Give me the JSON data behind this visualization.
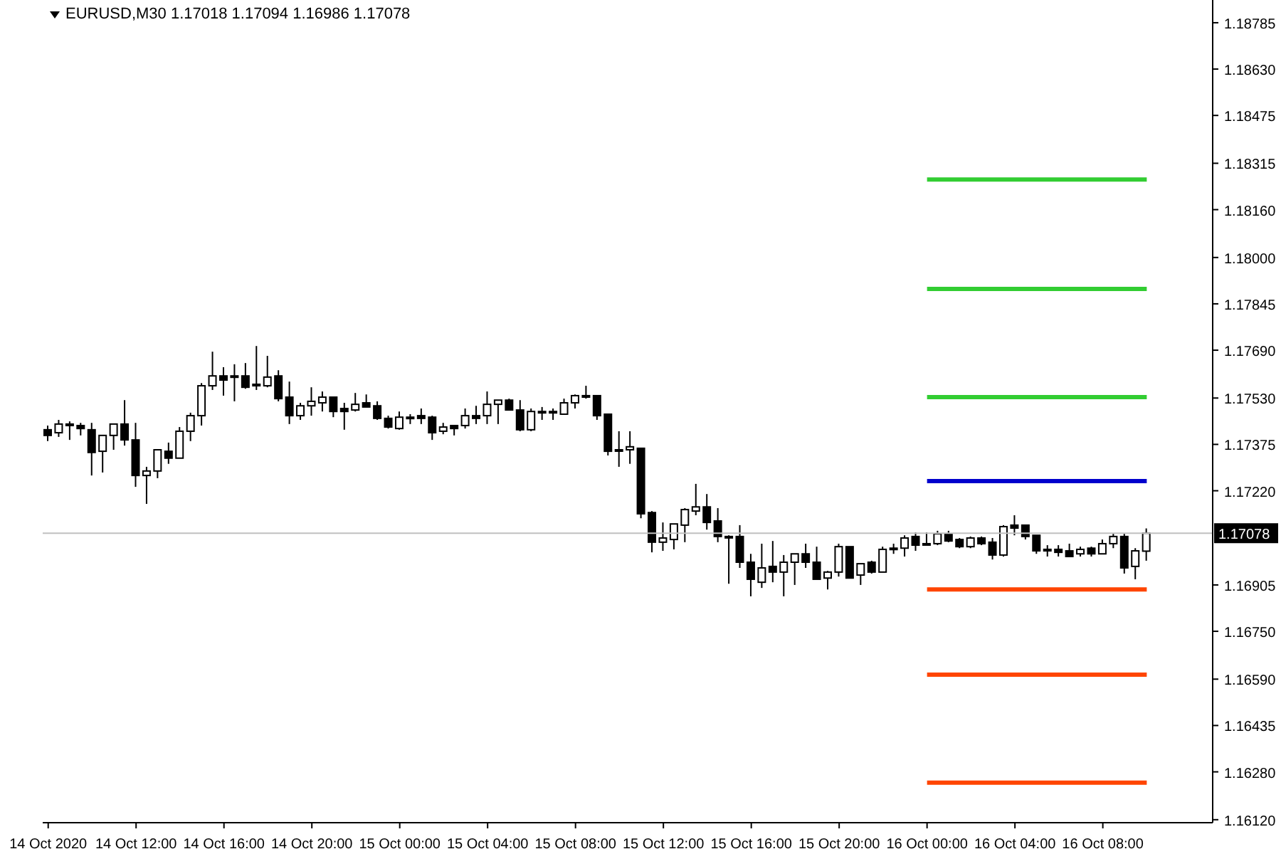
{
  "chart_data": {
    "type": "candlestick",
    "title": "EURUSD,M30 1.17018 1.17094 1.16986 1.17078",
    "x": [
      "2020-10-14T08:00",
      "2020-10-14T08:30",
      "2020-10-14T09:00",
      "2020-10-14T09:30",
      "2020-10-14T10:00",
      "2020-10-14T10:30",
      "2020-10-14T11:00",
      "2020-10-14T11:30",
      "2020-10-14T12:00",
      "2020-10-14T12:30",
      "2020-10-14T13:00",
      "2020-10-14T13:30",
      "2020-10-14T14:00",
      "2020-10-14T14:30",
      "2020-10-14T15:00",
      "2020-10-14T15:30",
      "2020-10-14T16:00",
      "2020-10-14T16:30",
      "2020-10-14T17:00",
      "2020-10-14T17:30",
      "2020-10-14T18:00",
      "2020-10-14T18:30",
      "2020-10-14T19:00",
      "2020-10-14T19:30",
      "2020-10-14T20:00",
      "2020-10-14T20:30",
      "2020-10-14T21:00",
      "2020-10-14T21:30",
      "2020-10-14T22:00",
      "2020-10-14T22:30",
      "2020-10-14T23:00",
      "2020-10-14T23:30",
      "2020-10-15T00:00",
      "2020-10-15T00:30",
      "2020-10-15T01:00",
      "2020-10-15T01:30",
      "2020-10-15T02:00",
      "2020-10-15T02:30",
      "2020-10-15T03:00",
      "2020-10-15T03:30",
      "2020-10-15T04:00",
      "2020-10-15T04:30",
      "2020-10-15T05:00",
      "2020-10-15T05:30",
      "2020-10-15T06:00",
      "2020-10-15T06:30",
      "2020-10-15T07:00",
      "2020-10-15T07:30",
      "2020-10-15T08:00",
      "2020-10-15T08:30",
      "2020-10-15T09:00",
      "2020-10-15T09:30",
      "2020-10-15T10:00",
      "2020-10-15T10:30",
      "2020-10-15T11:00",
      "2020-10-15T11:30",
      "2020-10-15T12:00",
      "2020-10-15T12:30",
      "2020-10-15T13:00",
      "2020-10-15T13:30",
      "2020-10-15T14:00",
      "2020-10-15T14:30",
      "2020-10-15T15:00",
      "2020-10-15T15:30",
      "2020-10-15T16:00",
      "2020-10-15T16:30",
      "2020-10-15T17:00",
      "2020-10-15T17:30",
      "2020-10-15T18:00",
      "2020-10-15T18:30",
      "2020-10-15T19:00",
      "2020-10-15T19:30",
      "2020-10-15T20:00",
      "2020-10-15T20:30",
      "2020-10-15T21:00",
      "2020-10-15T21:30",
      "2020-10-15T22:00",
      "2020-10-15T22:30",
      "2020-10-15T23:00",
      "2020-10-15T23:30",
      "2020-10-16T00:00",
      "2020-10-16T00:30",
      "2020-10-16T01:00",
      "2020-10-16T01:30",
      "2020-10-16T02:00",
      "2020-10-16T02:30",
      "2020-10-16T03:00",
      "2020-10-16T03:30",
      "2020-10-16T04:00",
      "2020-10-16T04:30",
      "2020-10-16T05:00",
      "2020-10-16T05:30",
      "2020-10-16T06:00",
      "2020-10-16T06:30",
      "2020-10-16T07:00",
      "2020-10-16T07:30",
      "2020-10-16T08:00",
      "2020-10-16T08:30",
      "2020-10-16T09:00",
      "2020-10-16T09:30",
      "2020-10-16T10:00"
    ],
    "ohlc": [
      [
        1.17424,
        1.17438,
        1.17386,
        1.17405
      ],
      [
        1.17414,
        1.17457,
        1.174,
        1.17443
      ],
      [
        1.17443,
        1.17452,
        1.1739,
        1.17438
      ],
      [
        1.17438,
        1.17447,
        1.17405,
        1.17428
      ],
      [
        1.17424,
        1.17447,
        1.17271,
        1.17348
      ],
      [
        1.17352,
        1.17405,
        1.17281,
        1.17405
      ],
      [
        1.17405,
        1.17443,
        1.17357,
        1.17443
      ],
      [
        1.17443,
        1.17523,
        1.17371,
        1.1739
      ],
      [
        1.1739,
        1.17447,
        1.17233,
        1.17271
      ],
      [
        1.17271,
        1.173,
        1.17176,
        1.17286
      ],
      [
        1.17286,
        1.17357,
        1.17262,
        1.17357
      ],
      [
        1.17352,
        1.17381,
        1.1731,
        1.17329
      ],
      [
        1.17329,
        1.17433,
        1.17329,
        1.17419
      ],
      [
        1.17419,
        1.17481,
        1.17386,
        1.17471
      ],
      [
        1.17471,
        1.1758,
        1.17438,
        1.17571
      ],
      [
        1.17571,
        1.17685,
        1.17557,
        1.17604
      ],
      [
        1.17604,
        1.17633,
        1.17538,
        1.1759
      ],
      [
        1.17604,
        1.17643,
        1.17519,
        1.176
      ],
      [
        1.17604,
        1.17647,
        1.17561,
        1.17566
      ],
      [
        1.17576,
        1.17704,
        1.17557,
        1.17571
      ],
      [
        1.17571,
        1.17671,
        1.17566,
        1.176
      ],
      [
        1.17604,
        1.17623,
        1.17519,
        1.17528
      ],
      [
        1.17533,
        1.17585,
        1.17443,
        1.17471
      ],
      [
        1.17471,
        1.17514,
        1.17457,
        1.17504
      ],
      [
        1.17504,
        1.17566,
        1.17471,
        1.17519
      ],
      [
        1.17514,
        1.17552,
        1.17485,
        1.17533
      ],
      [
        1.17533,
        1.17533,
        1.17466,
        1.17485
      ],
      [
        1.17495,
        1.17514,
        1.17424,
        1.17485
      ],
      [
        1.1749,
        1.17547,
        1.17485,
        1.17509
      ],
      [
        1.17514,
        1.17542,
        1.175,
        1.175
      ],
      [
        1.17504,
        1.17519,
        1.17457,
        1.17462
      ],
      [
        1.17462,
        1.17471,
        1.17428,
        1.17433
      ],
      [
        1.17428,
        1.17485,
        1.17424,
        1.17466
      ],
      [
        1.17466,
        1.17476,
        1.17443,
        1.17462
      ],
      [
        1.17471,
        1.17495,
        1.17443,
        1.17462
      ],
      [
        1.17466,
        1.17471,
        1.1739,
        1.17414
      ],
      [
        1.17419,
        1.17447,
        1.17409,
        1.17433
      ],
      [
        1.17438,
        1.17438,
        1.17405,
        1.17428
      ],
      [
        1.17438,
        1.17495,
        1.17428,
        1.17471
      ],
      [
        1.17471,
        1.17504,
        1.17443,
        1.17462
      ],
      [
        1.17471,
        1.17552,
        1.17443,
        1.17509
      ],
      [
        1.17509,
        1.17523,
        1.17443,
        1.17523
      ],
      [
        1.17523,
        1.17528,
        1.1749,
        1.1749
      ],
      [
        1.1749,
        1.17523,
        1.17419,
        1.17424
      ],
      [
        1.17424,
        1.17495,
        1.17419,
        1.17485
      ],
      [
        1.17485,
        1.175,
        1.17457,
        1.17485
      ],
      [
        1.17485,
        1.17495,
        1.17457,
        1.17481
      ],
      [
        1.17476,
        1.17528,
        1.17476,
        1.17514
      ],
      [
        1.17514,
        1.17542,
        1.17495,
        1.17538
      ],
      [
        1.17538,
        1.17571,
        1.17528,
        1.17533
      ],
      [
        1.17538,
        1.17538,
        1.17457,
        1.17471
      ],
      [
        1.17476,
        1.17476,
        1.17338,
        1.17352
      ],
      [
        1.17357,
        1.17419,
        1.173,
        1.17357
      ],
      [
        1.17357,
        1.17419,
        1.1731,
        1.17367
      ],
      [
        1.17362,
        1.17362,
        1.17128,
        1.17143
      ],
      [
        1.17147,
        1.17152,
        1.17014,
        1.17048
      ],
      [
        1.17048,
        1.17114,
        1.17019,
        1.17062
      ],
      [
        1.17057,
        1.17109,
        1.17024,
        1.17109
      ],
      [
        1.17105,
        1.17162,
        1.17048,
        1.17157
      ],
      [
        1.17152,
        1.17243,
        1.17138,
        1.17166
      ],
      [
        1.17166,
        1.17209,
        1.1709,
        1.17114
      ],
      [
        1.17119,
        1.17162,
        1.17048,
        1.17067
      ],
      [
        1.17067,
        1.17071,
        1.16909,
        1.17067
      ],
      [
        1.17067,
        1.17105,
        1.16962,
        1.16981
      ],
      [
        1.16981,
        1.17009,
        1.16867,
        1.16924
      ],
      [
        1.16914,
        1.17043,
        1.16895,
        1.16962
      ],
      [
        1.16967,
        1.17052,
        1.16914,
        1.16948
      ],
      [
        1.16948,
        1.17005,
        1.16867,
        1.16981
      ],
      [
        1.16981,
        1.17009,
        1.16905,
        1.17009
      ],
      [
        1.17009,
        1.17043,
        1.16962,
        1.16981
      ],
      [
        1.16981,
        1.17033,
        1.16924,
        1.16924
      ],
      [
        1.16928,
        1.16952,
        1.1689,
        1.16948
      ],
      [
        1.16948,
        1.17043,
        1.16933,
        1.17033
      ],
      [
        1.17033,
        1.17033,
        1.16928,
        1.16928
      ],
      [
        1.16938,
        1.16976,
        1.16905,
        1.16976
      ],
      [
        1.16981,
        1.16986,
        1.16943,
        1.16948
      ],
      [
        1.16948,
        1.17033,
        1.16948,
        1.17024
      ],
      [
        1.17028,
        1.17043,
        1.17009,
        1.17024
      ],
      [
        1.17028,
        1.17071,
        1.17,
        1.17062
      ],
      [
        1.17067,
        1.17081,
        1.17019,
        1.17038
      ],
      [
        1.17043,
        1.17081,
        1.17038,
        1.17043
      ],
      [
        1.17043,
        1.17086,
        1.17038,
        1.17076
      ],
      [
        1.17076,
        1.17086,
        1.17048,
        1.17052
      ],
      [
        1.17057,
        1.17062,
        1.17028,
        1.17033
      ],
      [
        1.17033,
        1.17067,
        1.17028,
        1.17062
      ],
      [
        1.17062,
        1.17067,
        1.17038,
        1.17043
      ],
      [
        1.17048,
        1.17062,
        1.1699,
        1.17005
      ],
      [
        1.17005,
        1.17105,
        1.17,
        1.171
      ],
      [
        1.17105,
        1.17138,
        1.17071,
        1.17095
      ],
      [
        1.17105,
        1.17105,
        1.17057,
        1.17067
      ],
      [
        1.17071,
        1.17071,
        1.17009,
        1.17019
      ],
      [
        1.17024,
        1.17038,
        1.17,
        1.17019
      ],
      [
        1.17024,
        1.17038,
        1.17,
        1.17014
      ],
      [
        1.17019,
        1.17043,
        1.17,
        1.17
      ],
      [
        1.17009,
        1.17033,
        1.17,
        1.17024
      ],
      [
        1.17028,
        1.17033,
        1.17,
        1.17009
      ],
      [
        1.17009,
        1.17057,
        1.17009,
        1.17043
      ],
      [
        1.17043,
        1.17076,
        1.17028,
        1.17067
      ],
      [
        1.17067,
        1.17076,
        1.16943,
        1.16962
      ],
      [
        1.16967,
        1.17028,
        1.16924,
        1.17019
      ],
      [
        1.17018,
        1.17094,
        1.16986,
        1.17078
      ]
    ],
    "series": [
      {
        "type": "line",
        "color": "#32cd32",
        "x": [
          "2020-10-16T00:00",
          "2020-10-16T10:00"
        ],
        "values": [
          1.18261,
          1.18261
        ]
      },
      {
        "type": "line",
        "color": "#32cd32",
        "x": [
          "2020-10-16T00:00",
          "2020-10-16T10:00"
        ],
        "values": [
          1.17895,
          1.17895
        ]
      },
      {
        "type": "line",
        "color": "#32cd32",
        "x": [
          "2020-10-16T00:00",
          "2020-10-16T10:00"
        ],
        "values": [
          1.17533,
          1.17533
        ]
      },
      {
        "type": "line",
        "color": "#0000cd",
        "x": [
          "2020-10-16T00:00",
          "2020-10-16T10:00"
        ],
        "values": [
          1.17252,
          1.17252
        ]
      },
      {
        "type": "line",
        "color": "#ff4500",
        "x": [
          "2020-10-16T00:00",
          "2020-10-16T10:00"
        ],
        "values": [
          1.1689,
          1.1689
        ]
      },
      {
        "type": "line",
        "color": "#ff4500",
        "x": [
          "2020-10-16T00:00",
          "2020-10-16T10:00"
        ],
        "values": [
          1.16605,
          1.16605
        ]
      },
      {
        "type": "line",
        "color": "#ff4500",
        "x": [
          "2020-10-16T00:00",
          "2020-10-16T10:00"
        ],
        "values": [
          1.16244,
          1.16244
        ]
      }
    ],
    "ref_lines": [
      {
        "axis": "y",
        "value": 1.17078,
        "label": "1.17078",
        "color": "#c0c0c0"
      }
    ],
    "xlim": [
      "2020-10-14T07:45",
      "2020-10-16T13:00"
    ],
    "xticks": [
      {
        "value": "2020-10-14T08:00",
        "label": "14 Oct 2020"
      },
      {
        "value": "2020-10-14T12:00",
        "label": "14 Oct 12:00"
      },
      {
        "value": "2020-10-14T16:00",
        "label": "14 Oct 16:00"
      },
      {
        "value": "2020-10-14T20:00",
        "label": "14 Oct 20:00"
      },
      {
        "value": "2020-10-15T00:00",
        "label": "15 Oct 00:00"
      },
      {
        "value": "2020-10-15T04:00",
        "label": "15 Oct 04:00"
      },
      {
        "value": "2020-10-15T08:00",
        "label": "15 Oct 08:00"
      },
      {
        "value": "2020-10-15T12:00",
        "label": "15 Oct 12:00"
      },
      {
        "value": "2020-10-15T16:00",
        "label": "15 Oct 16:00"
      },
      {
        "value": "2020-10-15T20:00",
        "label": "15 Oct 20:00"
      },
      {
        "value": "2020-10-16T00:00",
        "label": "16 Oct 00:00"
      },
      {
        "value": "2020-10-16T04:00",
        "label": "16 Oct 04:00"
      },
      {
        "value": "2020-10-16T08:00",
        "label": "16 Oct 08:00"
      }
    ],
    "ylim": [
      1.1611,
      1.18861
    ],
    "yticks": [
      1.18785,
      {
        "value": 1.1863,
        "label": "1.18630"
      },
      1.18475,
      1.18315,
      {
        "value": 1.1816,
        "label": "1.18160"
      },
      {
        "value": 1.18,
        "label": "1.18000"
      },
      1.17845,
      {
        "value": 1.1769,
        "label": "1.17690"
      },
      {
        "value": 1.1753,
        "label": "1.17530"
      },
      1.17375,
      {
        "value": 1.1722,
        "label": "1.17220"
      },
      1.16905,
      {
        "value": 1.1675,
        "label": "1.16750"
      },
      {
        "value": 1.1659,
        "label": "1.16590"
      },
      1.16435,
      {
        "value": 1.1628,
        "label": "1.16280"
      },
      {
        "value": 1.1612,
        "label": "1.16120"
      }
    ]
  }
}
